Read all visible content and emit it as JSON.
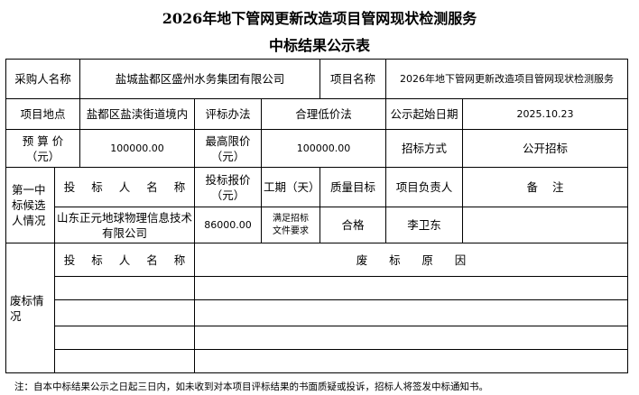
{
  "title_line1": "2026年地下管网更新改造项目管网现状检测服务",
  "title_line2": "中标结果公示表",
  "info": {
    "purchaser_label": "采购人名称",
    "purchaser_value": "盐城盐都区盛州水务集团有限公司",
    "project_name_label": "项目名称",
    "project_name_value": "2026年地下管网更新改造项目管网现状检测服务",
    "location_label": "项目地点",
    "location_value": "盐都区盐渎街道境内",
    "method_label": "评标办法",
    "method_value": "合理低价法",
    "start_date_label": "公示起始日期",
    "start_date_value": "2025.10.23",
    "budget_label": "预 算 价（元）",
    "budget_value": "100000.00",
    "max_price_label": "最高限价（元）",
    "max_price_value": "100000.00",
    "tender_method_label": "招标方式",
    "tender_method_value": "公开招标"
  },
  "candidate": {
    "section_label": "第一中标候选人情况",
    "headers": [
      "投 标 人 名 称",
      "投标报价（元）",
      "工期（天）",
      "质量目标",
      "项目负责人",
      "备    注"
    ],
    "row": [
      "山东正元地球物理信息技术有限公司",
      "86000.00",
      "满足招标文件要求",
      "合格",
      "李卫东",
      ""
    ]
  },
  "rejected": {
    "section_label": "废标情况",
    "headers": [
      "投 标 人 名 称",
      "废      标      原      因"
    ],
    "rows": [
      [
        "",
        ""
      ],
      [
        "",
        ""
      ],
      [
        "",
        ""
      ],
      [
        "",
        ""
      ]
    ]
  },
  "note": "注：自本中标结果公示之日起三日内，如未收到对本项目评标结果的书面质疑或投诉，招标人将签发中标通知书。"
}
